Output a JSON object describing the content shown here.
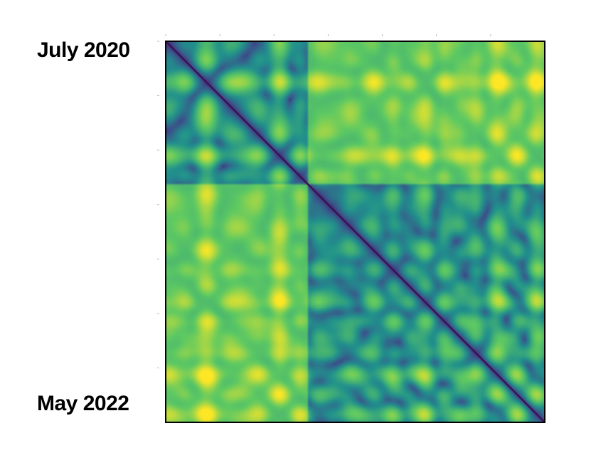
{
  "chart_data": {
    "type": "heatmap",
    "title": "",
    "xlabel": "",
    "ylabel": "",
    "time_axis": {
      "start_label": "July 2020",
      "end_label": "May 2022"
    },
    "colormap": [
      "#440154",
      "#3b528b",
      "#21918c",
      "#5ec962",
      "#fde725"
    ],
    "diagonal_value": 0.0,
    "block_boundary_fraction": 0.37,
    "grid": false,
    "legend": "none"
  }
}
